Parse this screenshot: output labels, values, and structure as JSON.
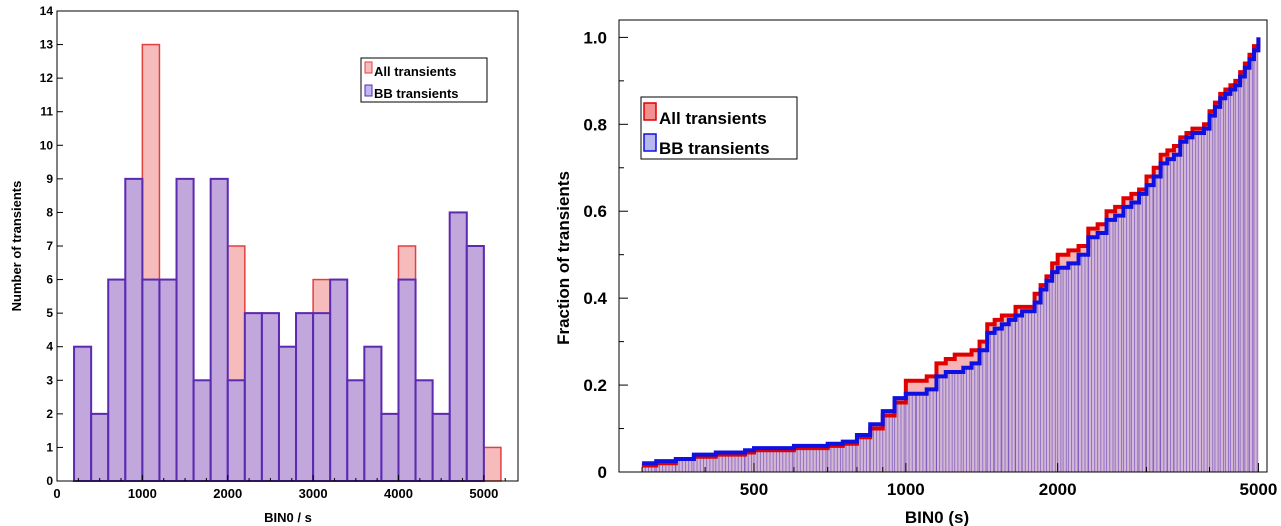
{
  "chart_data": [
    {
      "type": "bar",
      "xlabel": "BIN0 / s",
      "ylabel": "Number of transients",
      "xlim": [
        0,
        5400
      ],
      "ylim": [
        0,
        14
      ],
      "bin_width": 200,
      "xticks": [
        0,
        1000,
        2000,
        3000,
        4000,
        5000
      ],
      "yticks": [
        0,
        1,
        2,
        3,
        4,
        5,
        6,
        7,
        8,
        9,
        10,
        11,
        12,
        13,
        14
      ],
      "legend": "top-right",
      "series": [
        {
          "name": "All transients",
          "color": "#f2a0a0",
          "edge": "#e04040",
          "bin_starts": [
            200,
            400,
            600,
            800,
            1000,
            1200,
            1400,
            1600,
            1800,
            2000,
            2200,
            2400,
            2600,
            2800,
            3000,
            3200,
            3400,
            3600,
            3800,
            4000,
            4200,
            4400,
            4600,
            4800,
            5000
          ],
          "values": [
            4,
            2,
            6,
            9,
            13,
            6,
            9,
            3,
            9,
            7,
            5,
            5,
            4,
            5,
            6,
            6,
            3,
            4,
            2,
            7,
            3,
            2,
            8,
            7,
            1
          ]
        },
        {
          "name": "BB transients",
          "color": "#b0a0e8",
          "edge": "#5a2ab0",
          "bin_starts": [
            200,
            400,
            600,
            800,
            1000,
            1200,
            1400,
            1600,
            1800,
            2000,
            2200,
            2400,
            2600,
            2800,
            3000,
            3200,
            3400,
            3600,
            3800,
            4000,
            4200,
            4400,
            4600,
            4800
          ],
          "values": [
            4,
            2,
            6,
            9,
            6,
            6,
            9,
            3,
            9,
            3,
            5,
            5,
            4,
            5,
            5,
            6,
            3,
            4,
            2,
            6,
            3,
            2,
            8,
            7
          ]
        }
      ]
    },
    {
      "type": "area",
      "xscale": "log",
      "xlabel": "BIN0 (s)",
      "ylabel": "Fraction of transients",
      "xlim": [
        270,
        5200
      ],
      "ylim": [
        0,
        1.04
      ],
      "xticks": [
        500,
        1000,
        2000,
        5000
      ],
      "yticks": [
        0,
        0.2,
        0.4,
        0.6,
        0.8,
        1.0
      ],
      "ytick_labels": [
        "0",
        "0.2",
        "0.4",
        "0.6",
        "0.8",
        "1.0"
      ],
      "legend": "top-left",
      "series": [
        {
          "name": "All transients",
          "color": "#f2a0a0",
          "edge": "#e00000",
          "x": [
            300,
            320,
            350,
            380,
            420,
            480,
            500,
            600,
            700,
            750,
            800,
            850,
            900,
            950,
            1000,
            1050,
            1100,
            1150,
            1200,
            1250,
            1300,
            1350,
            1400,
            1450,
            1500,
            1550,
            1600,
            1650,
            1700,
            1750,
            1800,
            1850,
            1900,
            1950,
            2000,
            2050,
            2100,
            2200,
            2300,
            2400,
            2500,
            2600,
            2700,
            2800,
            2900,
            3000,
            3100,
            3200,
            3300,
            3400,
            3500,
            3600,
            3700,
            3800,
            3900,
            4000,
            4100,
            4200,
            4300,
            4400,
            4500,
            4600,
            4700,
            4800,
            4900,
            5000
          ],
          "y": [
            0.015,
            0.02,
            0.03,
            0.035,
            0.04,
            0.045,
            0.05,
            0.055,
            0.06,
            0.065,
            0.08,
            0.1,
            0.13,
            0.16,
            0.21,
            0.21,
            0.22,
            0.25,
            0.26,
            0.27,
            0.27,
            0.28,
            0.3,
            0.34,
            0.35,
            0.36,
            0.36,
            0.38,
            0.38,
            0.38,
            0.41,
            0.43,
            0.45,
            0.48,
            0.5,
            0.5,
            0.51,
            0.52,
            0.56,
            0.57,
            0.6,
            0.61,
            0.63,
            0.64,
            0.65,
            0.68,
            0.7,
            0.73,
            0.74,
            0.75,
            0.77,
            0.78,
            0.79,
            0.79,
            0.8,
            0.83,
            0.85,
            0.87,
            0.88,
            0.89,
            0.9,
            0.92,
            0.94,
            0.96,
            0.98,
            1.0
          ]
        },
        {
          "name": "BB transients",
          "color": "#b8b8f0",
          "edge": "#1010e0",
          "x": [
            300,
            320,
            350,
            380,
            420,
            480,
            500,
            600,
            700,
            750,
            800,
            850,
            900,
            950,
            1000,
            1050,
            1100,
            1150,
            1200,
            1250,
            1300,
            1350,
            1400,
            1450,
            1500,
            1550,
            1600,
            1650,
            1700,
            1750,
            1800,
            1850,
            1900,
            1950,
            2000,
            2050,
            2100,
            2200,
            2300,
            2400,
            2500,
            2600,
            2700,
            2800,
            2900,
            3000,
            3100,
            3200,
            3300,
            3400,
            3500,
            3600,
            3700,
            3800,
            3900,
            4000,
            4100,
            4200,
            4300,
            4400,
            4500,
            4600,
            4700,
            4800,
            4900,
            5000
          ],
          "y": [
            0.02,
            0.025,
            0.03,
            0.04,
            0.045,
            0.05,
            0.055,
            0.06,
            0.065,
            0.07,
            0.085,
            0.11,
            0.14,
            0.17,
            0.18,
            0.18,
            0.19,
            0.22,
            0.23,
            0.23,
            0.24,
            0.25,
            0.28,
            0.32,
            0.33,
            0.34,
            0.35,
            0.36,
            0.37,
            0.37,
            0.39,
            0.42,
            0.44,
            0.46,
            0.47,
            0.47,
            0.48,
            0.5,
            0.54,
            0.55,
            0.58,
            0.59,
            0.61,
            0.62,
            0.64,
            0.66,
            0.68,
            0.71,
            0.72,
            0.73,
            0.76,
            0.77,
            0.78,
            0.78,
            0.79,
            0.82,
            0.84,
            0.86,
            0.87,
            0.88,
            0.89,
            0.91,
            0.93,
            0.95,
            0.97,
            1.0
          ]
        }
      ]
    }
  ]
}
